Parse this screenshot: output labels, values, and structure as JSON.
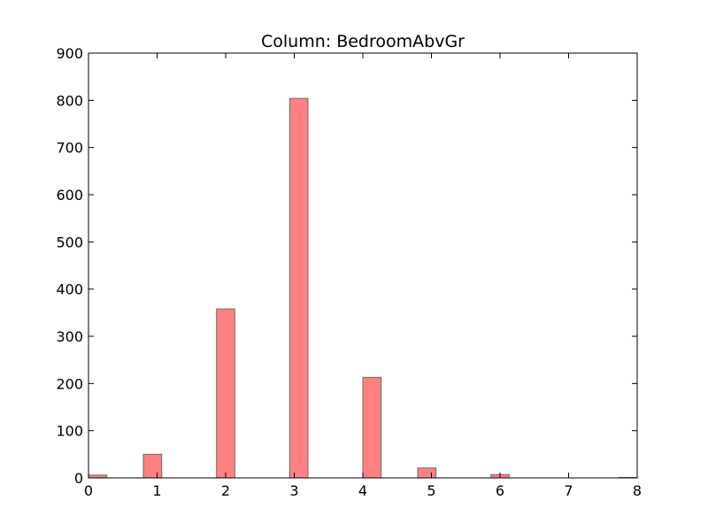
{
  "chart_data": {
    "type": "bar",
    "title": "Column: BedroomAbvGr",
    "xlabel": "",
    "ylabel": "",
    "xlim": [
      0,
      8
    ],
    "ylim": [
      0,
      900
    ],
    "xticks": [
      0,
      1,
      2,
      3,
      4,
      5,
      6,
      7,
      8
    ],
    "yticks": [
      0,
      100,
      200,
      300,
      400,
      500,
      600,
      700,
      800,
      900
    ],
    "bar_color": "#ff8080",
    "bar_edge_color": "#6b6b6b",
    "bins": [
      {
        "x0": 0.0,
        "x1": 0.267,
        "value": 6
      },
      {
        "x0": 0.8,
        "x1": 1.067,
        "value": 50
      },
      {
        "x0": 1.867,
        "x1": 2.133,
        "value": 358
      },
      {
        "x0": 2.933,
        "x1": 3.2,
        "value": 804
      },
      {
        "x0": 4.0,
        "x1": 4.267,
        "value": 213
      },
      {
        "x0": 4.8,
        "x1": 5.067,
        "value": 21
      },
      {
        "x0": 5.867,
        "x1": 6.133,
        "value": 7
      },
      {
        "x0": 6.933,
        "x1": 7.2,
        "value": 0
      },
      {
        "x0": 7.733,
        "x1": 8.0,
        "value": 1
      }
    ]
  }
}
